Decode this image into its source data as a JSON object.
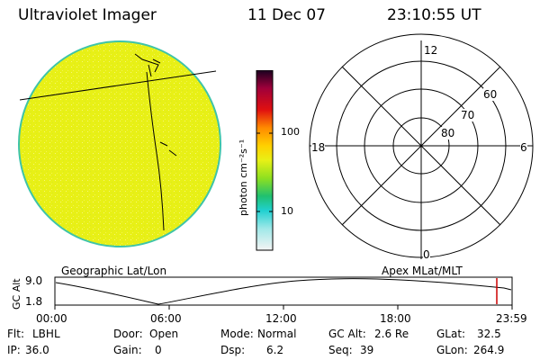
{
  "header": {
    "title": "Ultraviolet Imager",
    "date": "11 Dec 07",
    "time": "23:10:55 UT"
  },
  "colorbar": {
    "label": "photon cm⁻²s⁻¹",
    "ticks": [
      "100",
      "10"
    ]
  },
  "polar": {
    "mlt_labels": [
      "12",
      "18",
      "6",
      "0"
    ],
    "lat_labels": [
      "60",
      "70",
      "80"
    ]
  },
  "panel_labels": {
    "left": "Geographic Lat/Lon",
    "right": "Apex MLat/MLT"
  },
  "altitude_plot": {
    "ylabel": "GC Alt",
    "ymax": "9.0",
    "ymin": "1.8",
    "xticks": [
      "00:00",
      "06:00",
      "12:00",
      "18:00",
      "23:59"
    ]
  },
  "status": {
    "row1": [
      {
        "label": "Flt:",
        "value": "LBHL"
      },
      {
        "label": "Door:",
        "value": "Open"
      },
      {
        "label": "Mode:",
        "value": "Normal"
      },
      {
        "label": "GC Alt:",
        "value": "2.6 Re"
      },
      {
        "label": "GLat:",
        "value": "32.5"
      }
    ],
    "row2": [
      {
        "label": "IP:",
        "value": "36.0"
      },
      {
        "label": "Gain:",
        "value": "0"
      },
      {
        "label": "Dsp:",
        "value": "6.2"
      },
      {
        "label": "Seq:",
        "value": "39"
      },
      {
        "label": "GLon:",
        "value": "264.9"
      }
    ]
  },
  "colors": {
    "earth_disk": "#e8f016",
    "disk_edge": "#3ec4a8",
    "marker": "#cc0000"
  }
}
